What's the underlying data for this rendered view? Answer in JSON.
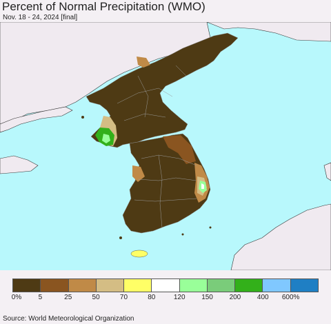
{
  "header": {
    "title": "Percent of Normal Precipitation (WMO)",
    "subtitle": "Nov. 18 - 24, 2024 [final]"
  },
  "legend": {
    "colors": [
      "#4e3a14",
      "#8a5520",
      "#c08a47",
      "#d4bd84",
      "#ffff66",
      "#ffffff",
      "#99ff99",
      "#7acc7a",
      "#33b01a",
      "#80c8ff",
      "#1f7fc4"
    ],
    "tick_labels": [
      "0%",
      "5",
      "25",
      "50",
      "70",
      "80",
      "120",
      "150",
      "200",
      "400",
      "600%"
    ]
  },
  "footer": {
    "source": "Source: World Meteorological Organization"
  },
  "colors": {
    "sea": "#b8f8fc",
    "foreign_land": "#f0eaf0",
    "dry": "#4e3a14",
    "brown": "#8a5520",
    "tan": "#c08a47",
    "pale": "#d4bd84",
    "yellow": "#ffff66",
    "light_green": "#99ff99",
    "green": "#33b01a"
  }
}
